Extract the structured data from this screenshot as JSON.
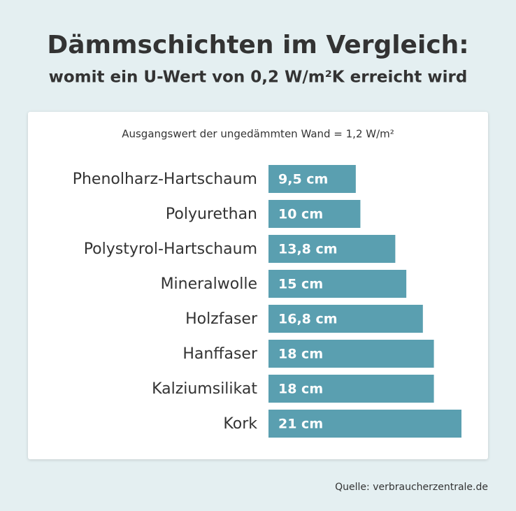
{
  "chart_data": {
    "type": "bar",
    "orientation": "horizontal",
    "title": "Dämmschichten im Vergleich:",
    "subtitle": "womit ein U-Wert von 0,2 W/m²K erreicht wird",
    "note": "Ausgangswert der ungedämmten Wand = 1,2 W/m²",
    "source": "Quelle: verbraucherzentrale.de",
    "categories": [
      "Phenolharz-Hartschaum",
      "Polyurethan",
      "Polystyrol-Hartschaum",
      "Mineralwolle",
      "Holzfaser",
      "Hanffaser",
      "Kalziumsilikat",
      "Kork"
    ],
    "values": [
      9.5,
      10,
      13.8,
      15,
      16.8,
      18,
      18,
      21
    ],
    "value_labels": [
      "9,5 cm",
      "10 cm",
      "13,8 cm",
      "15 cm",
      "16,8 cm",
      "18 cm",
      "18 cm",
      "21 cm"
    ],
    "color": "#5a9fb0"
  }
}
